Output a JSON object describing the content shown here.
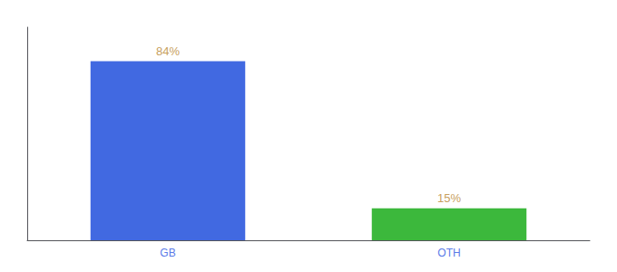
{
  "chart_data": {
    "type": "bar",
    "categories": [
      "GB",
      "OTH"
    ],
    "values": [
      84,
      15
    ],
    "colors": [
      "#4169e1",
      "#3cb83c"
    ],
    "data_labels": true,
    "value_labels": [
      "84%",
      "15%"
    ],
    "ylim": [
      0,
      100
    ],
    "tick_labels": "x",
    "grid": false
  }
}
